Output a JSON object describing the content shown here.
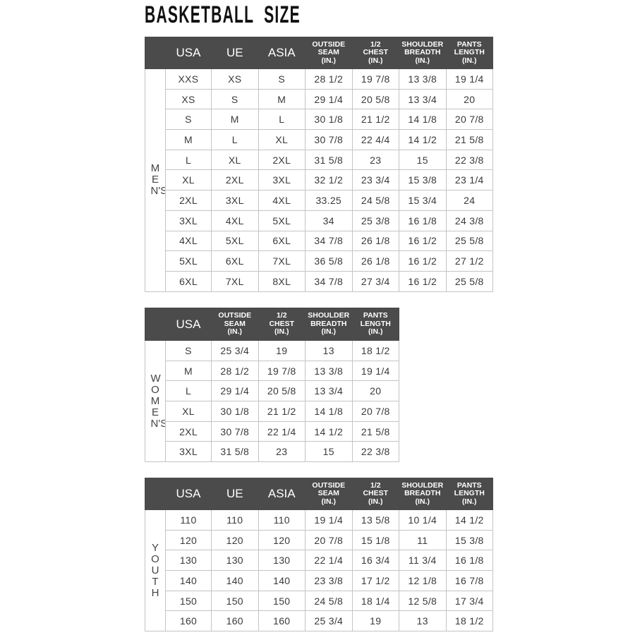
{
  "title": "BASKETBALL  SIZE",
  "colors": {
    "header_bg": "#4b4b4b",
    "header_text": "#ffffff",
    "border": "#c4c4c4"
  },
  "tables": [
    {
      "id": "men",
      "side_label": "MEN'S",
      "headers": [
        "USA",
        "UE",
        "ASIA",
        "OUTSIDE\nSEAM\n(IN.)",
        "1/2\nCHEST\n(IN.)",
        "SHOULDER\nBREADTH\n(IN.)",
        "PANTS\nLENGTH\n(IN.)"
      ],
      "big_headers": 3,
      "rows": [
        [
          "XXS",
          "XS",
          "S",
          "28 1/2",
          "19 7/8",
          "13 3/8",
          "19 1/4"
        ],
        [
          "XS",
          "S",
          "M",
          "29 1/4",
          "20 5/8",
          "13 3/4",
          "20"
        ],
        [
          "S",
          "M",
          "L",
          "30 1/8",
          "21 1/2",
          "14 1/8",
          "20 7/8"
        ],
        [
          "M",
          "L",
          "XL",
          "30 7/8",
          "22 4/4",
          "14 1/2",
          "21 5/8"
        ],
        [
          "L",
          "XL",
          "2XL",
          "31 5/8",
          "23",
          "15",
          "22 3/8"
        ],
        [
          "XL",
          "2XL",
          "3XL",
          "32 1/2",
          "23 3/4",
          "15 3/8",
          "23 1/4"
        ],
        [
          "2XL",
          "3XL",
          "4XL",
          "33.25",
          "24 5/8",
          "15 3/4",
          "24"
        ],
        [
          "3XL",
          "4XL",
          "5XL",
          "34",
          "25 3/8",
          "16 1/8",
          "24 3/8"
        ],
        [
          "4XL",
          "5XL",
          "6XL",
          "34 7/8",
          "26 1/8",
          "16 1/2",
          "25 5/8"
        ],
        [
          "5XL",
          "6XL",
          "7XL",
          "36 5/8",
          "26 1/8",
          "16 1/2",
          "27 1/2"
        ],
        [
          "6XL",
          "7XL",
          "8XL",
          "34 7/8",
          "27 3/4",
          "16 1/2",
          "25 5/8"
        ]
      ]
    },
    {
      "id": "women",
      "side_label": "WOMEN'S",
      "headers": [
        "USA",
        "OUTSIDE\nSEAM\n(IN.)",
        "1/2\nCHEST\n(IN.)",
        "SHOULDER\nBREADTH\n(IN.)",
        "PANTS\nLENGTH\n(IN.)"
      ],
      "big_headers": 1,
      "rows": [
        [
          "S",
          "25 3/4",
          "19",
          "13",
          "18 1/2"
        ],
        [
          "M",
          "28 1/2",
          "19 7/8",
          "13 3/8",
          "19 1/4"
        ],
        [
          "L",
          "29 1/4",
          "20 5/8",
          "13 3/4",
          "20"
        ],
        [
          "XL",
          "30 1/8",
          "21 1/2",
          "14 1/8",
          "20 7/8"
        ],
        [
          "2XL",
          "30 7/8",
          "22 1/4",
          "14 1/2",
          "21 5/8"
        ],
        [
          "3XL",
          "31 5/8",
          "23",
          "15",
          "22 3/8"
        ]
      ]
    },
    {
      "id": "youth",
      "side_label": "YOUTH",
      "headers": [
        "USA",
        "UE",
        "ASIA",
        "OUTSIDE\nSEAM\n(IN.)",
        "1/2\nCHEST\n(IN.)",
        "SHOULDER\nBREADTH\n(IN.)",
        "PANTS\nLENGTH\n(IN.)"
      ],
      "big_headers": 3,
      "rows": [
        [
          "110",
          "110",
          "110",
          "19 1/4",
          "13 5/8",
          "10 1/4",
          "14 1/2"
        ],
        [
          "120",
          "120",
          "120",
          "20 7/8",
          "15 1/8",
          "11",
          "15 3/8"
        ],
        [
          "130",
          "130",
          "130",
          "22 1/4",
          "16 3/4",
          "11 3/4",
          "16 1/8"
        ],
        [
          "140",
          "140",
          "140",
          "23 3/8",
          "17 1/2",
          "12 1/8",
          "16 7/8"
        ],
        [
          "150",
          "150",
          "150",
          "24 5/8",
          "18 1/4",
          "12 5/8",
          "17 3/4"
        ],
        [
          "160",
          "160",
          "160",
          "25 3/4",
          "19",
          "13",
          "18 1/2"
        ]
      ]
    }
  ]
}
